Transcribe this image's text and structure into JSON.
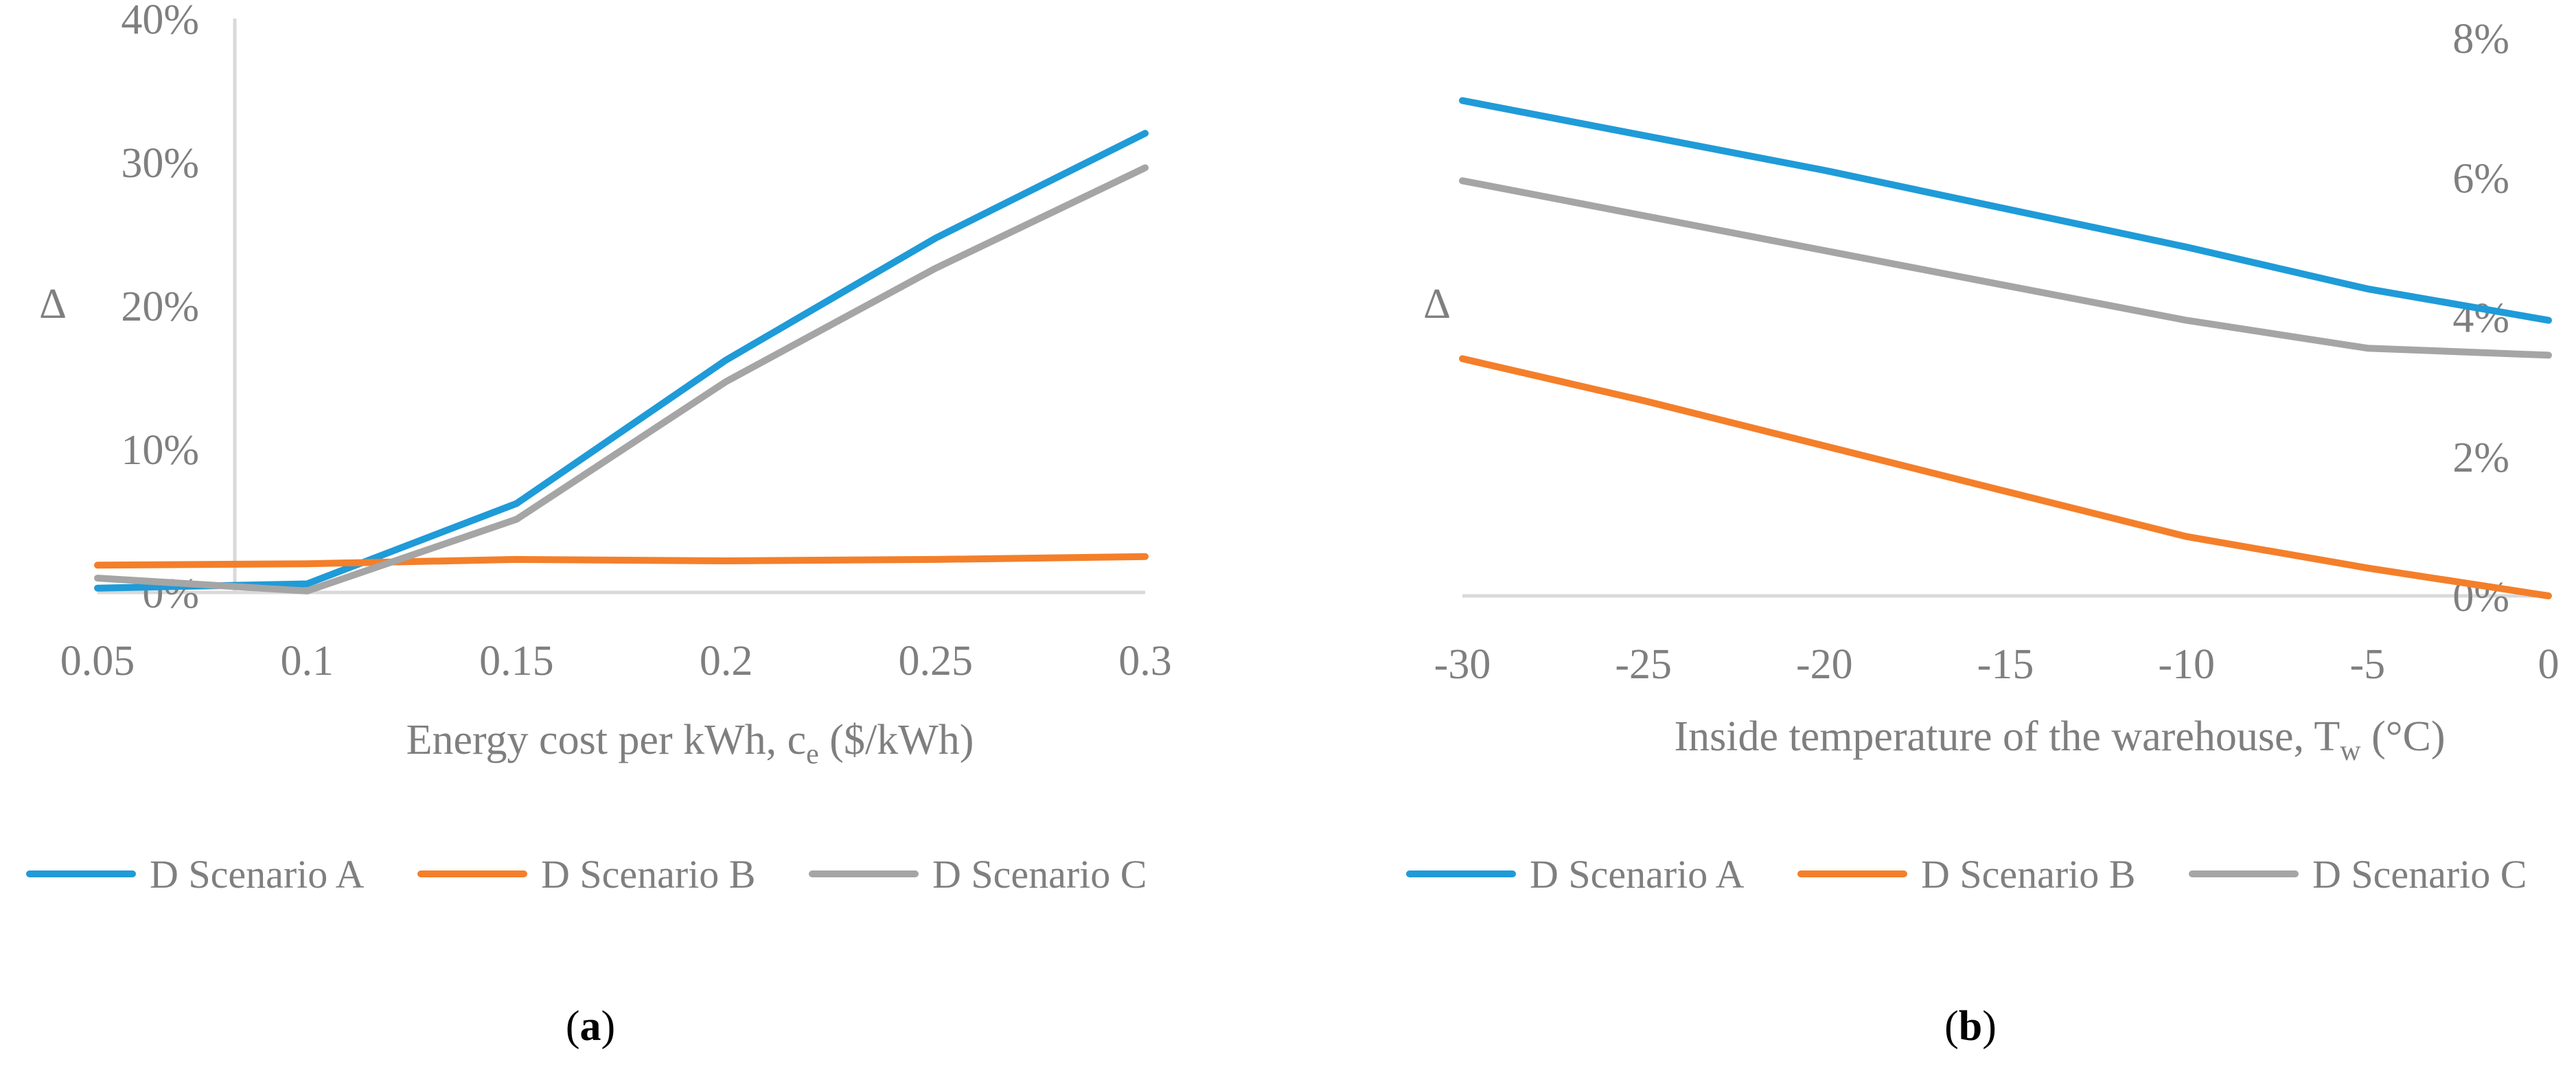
{
  "chart_data": [
    {
      "type": "line",
      "panel_label": "a",
      "ylabel": "Δ",
      "xlabel_main": "Energy cost per kWh, c",
      "xlabel_sub": "e",
      "xlabel_tail": " ($/kWh)",
      "x": [
        0.05,
        0.1,
        0.15,
        0.2,
        0.25,
        0.3
      ],
      "xticks": [
        "0.05",
        "0.1",
        "0.15",
        "0.2",
        "0.25",
        "0.3"
      ],
      "ylim": [
        0,
        40
      ],
      "yticks": [
        {
          "value": 0,
          "label": "0%"
        },
        {
          "value": 10,
          "label": "10%"
        },
        {
          "value": 20,
          "label": "20%"
        },
        {
          "value": 30,
          "label": "30%"
        },
        {
          "value": 40,
          "label": "40%"
        }
      ],
      "y_axis_side": "left",
      "series": [
        {
          "name": "D Scenario A",
          "color": "#1f9bd8",
          "values": [
            0.3,
            0.6,
            6.2,
            16.2,
            24.7,
            32.0
          ]
        },
        {
          "name": "D Scenario B",
          "color": "#f47f2a",
          "values": [
            1.9,
            2.0,
            2.3,
            2.2,
            2.3,
            2.5
          ]
        },
        {
          "name": "D Scenario C",
          "color": "#a5a5a5",
          "values": [
            1.0,
            0.1,
            5.1,
            14.7,
            22.6,
            29.6
          ]
        }
      ]
    },
    {
      "type": "line",
      "panel_label": "b",
      "ylabel": "Δ",
      "xlabel_main": "Inside temperature of the warehouse, T",
      "xlabel_sub": "w",
      "xlabel_tail": " (°C)",
      "x": [
        -30,
        -25,
        -20,
        -15,
        -10,
        -5,
        0
      ],
      "xticks": [
        "-30",
        "-25",
        "-20",
        "-15",
        "-10",
        "-5",
        "0"
      ],
      "ylim": [
        0,
        8
      ],
      "yticks": [
        {
          "value": 0,
          "label": "0%"
        },
        {
          "value": 2,
          "label": "2%"
        },
        {
          "value": 4,
          "label": "4%"
        },
        {
          "value": 6,
          "label": "6%"
        },
        {
          "value": 8,
          "label": "8%"
        }
      ],
      "y_axis_side": "right",
      "series": [
        {
          "name": "D Scenario A",
          "color": "#1f9bd8",
          "values": [
            7.1,
            6.6,
            6.1,
            5.55,
            5.0,
            4.4,
            3.95
          ]
        },
        {
          "name": "D Scenario B",
          "color": "#f47f2a",
          "values": [
            3.4,
            2.8,
            2.15,
            1.5,
            0.85,
            0.4,
            0.0
          ]
        },
        {
          "name": "D Scenario C",
          "color": "#a5a5a5",
          "values": [
            5.95,
            5.45,
            4.95,
            4.45,
            3.95,
            3.55,
            3.45
          ]
        }
      ]
    }
  ]
}
